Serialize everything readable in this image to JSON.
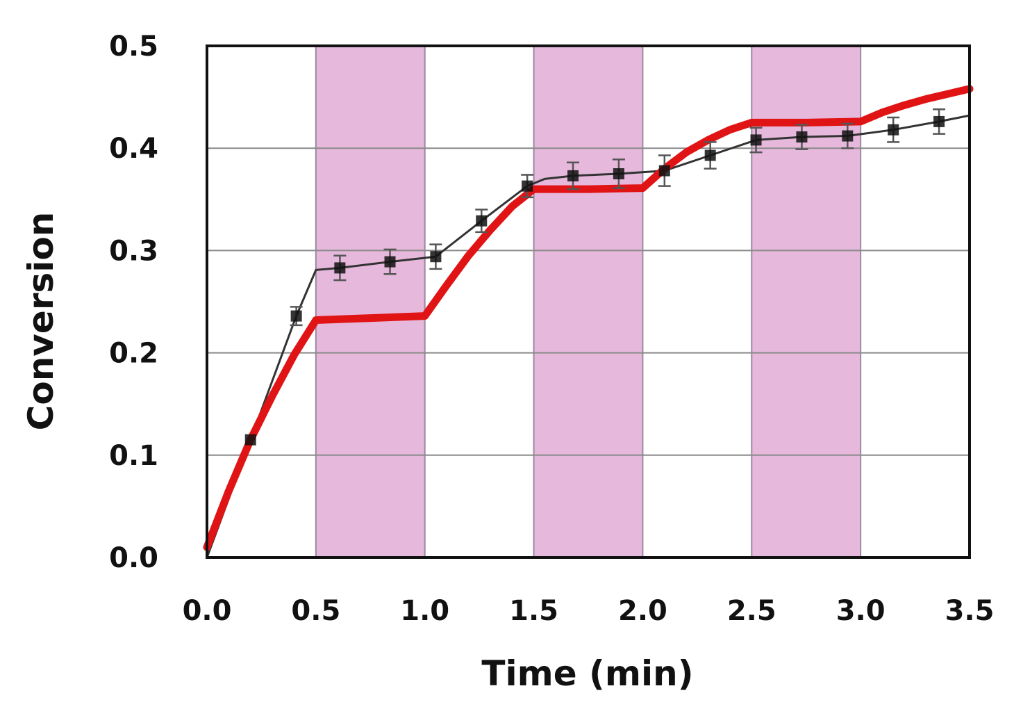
{
  "chart_data": {
    "type": "line",
    "title": "",
    "xlabel": "Time (min)",
    "ylabel": "Conversion",
    "xlim": [
      0,
      3.5
    ],
    "ylim": [
      0,
      0.5
    ],
    "xticks": [
      "0.0",
      "0.5",
      "1.0",
      "1.5",
      "2.0",
      "2.5",
      "3.0",
      "3.5"
    ],
    "yticks": [
      "0.0",
      "0.1",
      "0.2",
      "0.3",
      "0.4",
      "0.5"
    ],
    "grid": "horizontal",
    "shaded_intervals": [
      [
        0.5,
        1.0
      ],
      [
        1.5,
        2.0
      ],
      [
        2.5,
        3.0
      ]
    ],
    "colors": {
      "shade": "#e6b8dc",
      "series_experimental": "#111111",
      "series_model": "#e01414",
      "grid": "#8a8a8a"
    },
    "series": [
      {
        "x": [
          0.0,
          0.2,
          0.41,
          0.5,
          0.61,
          0.84,
          1.05,
          1.26,
          1.47,
          1.55,
          1.68,
          1.89,
          2.1,
          2.31,
          2.52,
          2.73,
          2.94,
          3.15,
          3.36,
          3.5
        ],
        "y": [
          0.0,
          0.115,
          0.236,
          0.281,
          0.283,
          0.289,
          0.294,
          0.329,
          0.363,
          0.37,
          0.373,
          0.375,
          0.378,
          0.393,
          0.408,
          0.411,
          0.412,
          0.418,
          0.426,
          0.432
        ],
        "markers": [
          {
            "x": 0.2,
            "y": 0.115,
            "err": 0.0
          },
          {
            "x": 0.41,
            "y": 0.236,
            "err": 0.009
          },
          {
            "x": 0.61,
            "y": 0.283,
            "err": 0.012
          },
          {
            "x": 0.84,
            "y": 0.289,
            "err": 0.012
          },
          {
            "x": 1.05,
            "y": 0.294,
            "err": 0.012
          },
          {
            "x": 1.26,
            "y": 0.329,
            "err": 0.011
          },
          {
            "x": 1.47,
            "y": 0.363,
            "err": 0.011
          },
          {
            "x": 1.68,
            "y": 0.373,
            "err": 0.013
          },
          {
            "x": 1.89,
            "y": 0.375,
            "err": 0.014
          },
          {
            "x": 2.1,
            "y": 0.378,
            "err": 0.015
          },
          {
            "x": 2.31,
            "y": 0.393,
            "err": 0.013
          },
          {
            "x": 2.52,
            "y": 0.408,
            "err": 0.012
          },
          {
            "x": 2.73,
            "y": 0.411,
            "err": 0.012
          },
          {
            "x": 2.94,
            "y": 0.412,
            "err": 0.012
          },
          {
            "x": 3.15,
            "y": 0.418,
            "err": 0.012
          },
          {
            "x": 3.36,
            "y": 0.426,
            "err": 0.012
          }
        ]
      },
      {
        "x": [
          0.0,
          0.1,
          0.2,
          0.3,
          0.4,
          0.5,
          0.75,
          1.0,
          1.1,
          1.2,
          1.3,
          1.4,
          1.5,
          1.75,
          2.0,
          2.1,
          2.2,
          2.3,
          2.4,
          2.5,
          2.75,
          3.0,
          3.1,
          3.2,
          3.3,
          3.4,
          3.5
        ],
        "y": [
          0.01,
          0.065,
          0.115,
          0.158,
          0.198,
          0.232,
          0.234,
          0.236,
          0.266,
          0.295,
          0.32,
          0.343,
          0.36,
          0.36,
          0.361,
          0.38,
          0.396,
          0.408,
          0.418,
          0.425,
          0.425,
          0.426,
          0.435,
          0.442,
          0.448,
          0.453,
          0.458
        ]
      }
    ]
  }
}
